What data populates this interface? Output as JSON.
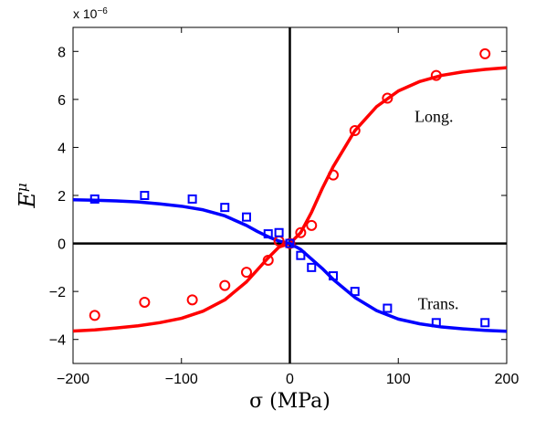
{
  "chart_data": {
    "type": "scatter",
    "title": "",
    "xlabel": "σ (MPa)",
    "ylabel": "E^μ",
    "ylabel_base": "E",
    "ylabel_sup": "μ",
    "y_multiplier": "x 10",
    "y_multiplier_exp": "−6",
    "xlim": [
      -200,
      200
    ],
    "ylim": [
      -5,
      9
    ],
    "xticks": [
      -200,
      -100,
      0,
      100,
      200
    ],
    "xtick_labels": [
      "−200",
      "−100",
      "0",
      "100",
      "200"
    ],
    "yticks": [
      -4,
      -2,
      0,
      2,
      4,
      6,
      8
    ],
    "ytick_labels": [
      "−4",
      "−2",
      "0",
      "2",
      "4",
      "6",
      "8"
    ],
    "grid": false,
    "annotations": [
      {
        "text": "Long.",
        "x": 115,
        "y": 5.3
      },
      {
        "text": "Trans.",
        "x": 118,
        "y": -2.5
      }
    ],
    "series": [
      {
        "label": "Long.",
        "kind": "markers",
        "marker": "circle",
        "color": "#ff0000",
        "x": [
          -180,
          -134,
          -90,
          -60,
          -40,
          -20,
          -10,
          0,
          10,
          20,
          40,
          60,
          90,
          135,
          180
        ],
        "y": [
          -3.0,
          -2.45,
          -2.35,
          -1.75,
          -1.2,
          -0.7,
          0.1,
          0.0,
          0.45,
          0.75,
          2.85,
          4.7,
          6.05,
          7.0,
          7.9
        ]
      },
      {
        "label": "Long.",
        "kind": "fit",
        "color": "#ff0000",
        "x": [
          -200,
          -180,
          -160,
          -140,
          -120,
          -100,
          -80,
          -60,
          -40,
          -30,
          -20,
          -10,
          0,
          10,
          20,
          30,
          40,
          60,
          80,
          100,
          120,
          140,
          160,
          180,
          200
        ],
        "y": [
          -3.65,
          -3.6,
          -3.52,
          -3.43,
          -3.3,
          -3.12,
          -2.82,
          -2.35,
          -1.6,
          -1.1,
          -0.6,
          -0.15,
          0.0,
          0.45,
          1.3,
          2.3,
          3.2,
          4.7,
          5.7,
          6.35,
          6.75,
          7.0,
          7.15,
          7.25,
          7.32
        ]
      },
      {
        "label": "Trans.",
        "kind": "markers",
        "marker": "square",
        "color": "#0000ff",
        "x": [
          -180,
          -134,
          -90,
          -60,
          -40,
          -20,
          -10,
          0,
          10,
          20,
          40,
          60,
          90,
          135,
          180
        ],
        "y": [
          1.85,
          2.0,
          1.85,
          1.5,
          1.1,
          0.4,
          0.45,
          0.0,
          -0.5,
          -1.0,
          -1.35,
          -2.0,
          -2.7,
          -3.3,
          -3.3
        ]
      },
      {
        "label": "Trans.",
        "kind": "fit",
        "color": "#0000ff",
        "x": [
          -200,
          -180,
          -160,
          -140,
          -120,
          -100,
          -80,
          -60,
          -40,
          -30,
          -20,
          -10,
          0,
          10,
          20,
          30,
          40,
          60,
          80,
          100,
          120,
          140,
          160,
          180,
          200
        ],
        "y": [
          1.82,
          1.8,
          1.77,
          1.73,
          1.65,
          1.55,
          1.4,
          1.15,
          0.75,
          0.5,
          0.28,
          0.1,
          0.0,
          -0.25,
          -0.65,
          -1.05,
          -1.5,
          -2.25,
          -2.8,
          -3.15,
          -3.35,
          -3.48,
          -3.56,
          -3.62,
          -3.66
        ]
      }
    ]
  }
}
